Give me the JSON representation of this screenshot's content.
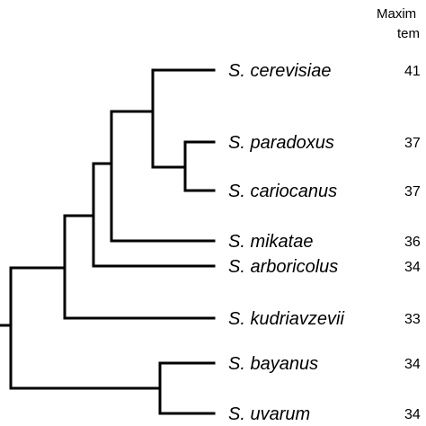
{
  "header": {
    "line1": "Maxim",
    "line2": "tem"
  },
  "taxa": [
    {
      "species": "S. cerevisiae",
      "temperature": "41"
    },
    {
      "species": "S. paradoxus",
      "temperature": "37"
    },
    {
      "species": "S. cariocanus",
      "temperature": "37"
    },
    {
      "species": "S. mikatae",
      "temperature": "36"
    },
    {
      "species": "S. arboricolus",
      "temperature": "34"
    },
    {
      "species": "S. kudriavzevii",
      "temperature": "33"
    },
    {
      "species": "S. bayanus",
      "temperature": "34"
    },
    {
      "species": "S. uvarum",
      "temperature": "34"
    }
  ],
  "colors": {
    "branch": "#000000",
    "text": "#000000",
    "background": "#ffffff"
  }
}
